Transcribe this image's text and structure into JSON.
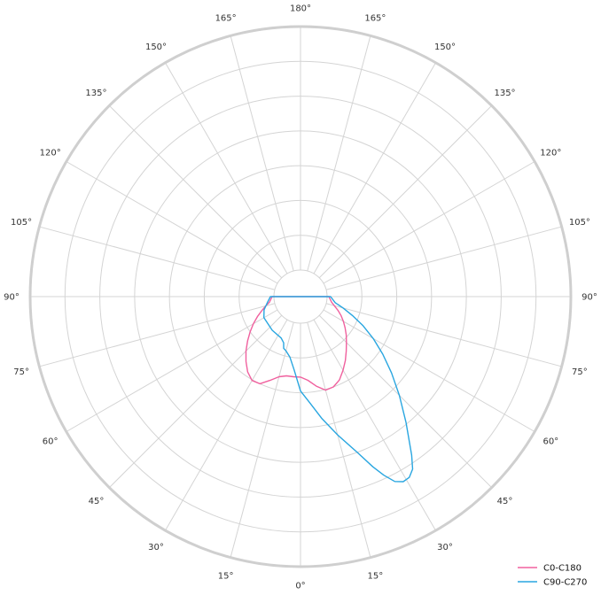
{
  "chart_data": {
    "type": "line",
    "projection": "polar",
    "zero_direction": "bottom",
    "radial_grid_count": 7,
    "angle_tick_labels": [
      {
        "angle": 0,
        "label": "0°"
      },
      {
        "angle": 15,
        "label": "15°"
      },
      {
        "angle": 30,
        "label": "30°"
      },
      {
        "angle": 45,
        "label": "45°"
      },
      {
        "angle": 60,
        "label": "60°"
      },
      {
        "angle": 75,
        "label": "75°"
      },
      {
        "angle": 90,
        "label": "90°"
      },
      {
        "angle": 105,
        "label": "105°"
      },
      {
        "angle": 120,
        "label": "120°"
      },
      {
        "angle": 135,
        "label": "135°"
      },
      {
        "angle": 150,
        "label": "150°"
      },
      {
        "angle": 165,
        "label": "165°"
      },
      {
        "angle": 180,
        "label": "180°"
      },
      {
        "angle": 195,
        "label": "165°"
      },
      {
        "angle": 210,
        "label": "150°"
      },
      {
        "angle": 225,
        "label": "135°"
      },
      {
        "angle": 240,
        "label": "120°"
      },
      {
        "angle": 255,
        "label": "105°"
      },
      {
        "angle": 270,
        "label": "90°"
      },
      {
        "angle": 285,
        "label": "75°"
      },
      {
        "angle": 300,
        "label": "60°"
      },
      {
        "angle": 315,
        "label": "45°"
      },
      {
        "angle": 330,
        "label": "30°"
      },
      {
        "angle": 345,
        "label": "15°"
      }
    ],
    "rlim": [
      0,
      7
    ],
    "legend_position": "bottom-right",
    "series": [
      {
        "name": "C0-C180",
        "color": "#f0609e",
        "points": [
          [
            0,
            1.55
          ],
          [
            5,
            1.65
          ],
          [
            10,
            1.85
          ],
          [
            15,
            2.02
          ],
          [
            20,
            2.0
          ],
          [
            25,
            1.88
          ],
          [
            30,
            1.68
          ],
          [
            35,
            1.48
          ],
          [
            40,
            1.28
          ],
          [
            45,
            1.1
          ],
          [
            50,
            0.95
          ],
          [
            55,
            0.8
          ],
          [
            60,
            0.66
          ],
          [
            65,
            0.52
          ],
          [
            70,
            0.38
          ],
          [
            75,
            0.24
          ],
          [
            80,
            0.14
          ],
          [
            90,
            0.05
          ],
          [
            270,
            0.05
          ],
          [
            280,
            0.14
          ],
          [
            285,
            0.27
          ],
          [
            290,
            0.42
          ],
          [
            295,
            0.6
          ],
          [
            300,
            0.8
          ],
          [
            305,
            1.0
          ],
          [
            310,
            1.22
          ],
          [
            315,
            1.45
          ],
          [
            320,
            1.67
          ],
          [
            325,
            1.88
          ],
          [
            330,
            2.02
          ],
          [
            335,
            2.0
          ],
          [
            340,
            1.8
          ],
          [
            345,
            1.62
          ],
          [
            350,
            1.55
          ],
          [
            355,
            1.55
          ],
          [
            360,
            1.55
          ]
        ]
      },
      {
        "name": "C90-C270",
        "color": "#29a6e0",
        "points": [
          [
            0,
            1.95
          ],
          [
            5,
            2.3
          ],
          [
            10,
            2.8
          ],
          [
            15,
            3.35
          ],
          [
            20,
            4.0
          ],
          [
            23,
            4.55
          ],
          [
            25,
            4.9
          ],
          [
            27,
            5.2
          ],
          [
            29,
            5.32
          ],
          [
            31,
            5.3
          ],
          [
            33,
            5.15
          ],
          [
            35,
            4.8
          ],
          [
            40,
            3.95
          ],
          [
            45,
            3.25
          ],
          [
            50,
            2.65
          ],
          [
            55,
            2.12
          ],
          [
            60,
            1.65
          ],
          [
            65,
            1.22
          ],
          [
            70,
            0.82
          ],
          [
            75,
            0.5
          ],
          [
            80,
            0.25
          ],
          [
            90,
            0.1
          ],
          [
            270,
            0.1
          ],
          [
            280,
            0.2
          ],
          [
            290,
            0.35
          ],
          [
            300,
            0.45
          ],
          [
            320,
            0.5
          ],
          [
            335,
            0.55
          ],
          [
            340,
            0.65
          ],
          [
            342,
            0.8
          ],
          [
            345,
            0.85
          ],
          [
            350,
            1.0
          ],
          [
            355,
            1.35
          ],
          [
            360,
            1.95
          ]
        ]
      }
    ]
  }
}
